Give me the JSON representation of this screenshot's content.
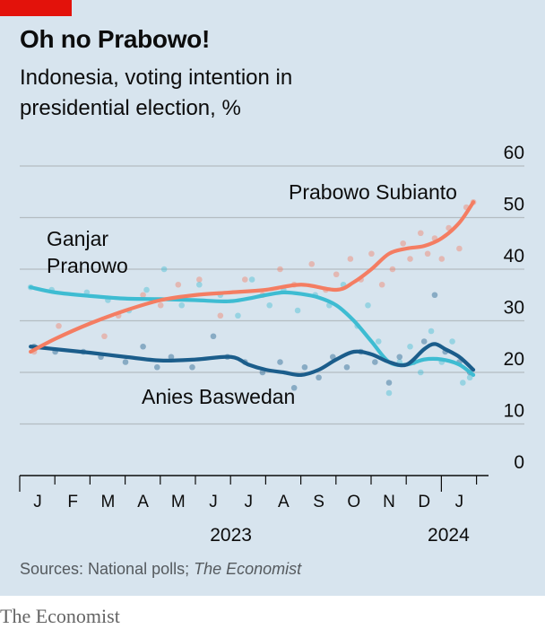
{
  "header": {
    "title": "Oh no Prabowo!",
    "subtitle": "Indonesia, voting intention in presidential election, %"
  },
  "source": {
    "prefix": "Sources: National polls; ",
    "italic": "The Economist"
  },
  "footer": {
    "brand": "The Economist"
  },
  "colors": {
    "background": "#d7e4ee",
    "grid": "#b4bcc2",
    "axis": "#0c0c0c",
    "prabowo": "#f47d62",
    "ganjar": "#3ebcd2",
    "anies": "#1b5d8b",
    "brand_red": "#e3120b"
  },
  "chart_data": {
    "type": "line",
    "x_unit": "month index (0 = Jan 2023)",
    "xlim": [
      0,
      12.7
    ],
    "ylim": [
      0,
      60
    ],
    "yticks": [
      0,
      10,
      20,
      30,
      40,
      50,
      60
    ],
    "grid": true,
    "month_labels": [
      "J",
      "F",
      "M",
      "A",
      "M",
      "J",
      "J",
      "A",
      "S",
      "O",
      "N",
      "D",
      "J"
    ],
    "year_labels": [
      {
        "text": "2023",
        "x": 5.5
      },
      {
        "text": "2024",
        "x": 12
      }
    ],
    "series": [
      {
        "name": "Prabowo Subianto",
        "color": "#f47d62",
        "x": [
          -0.2,
          0.5,
          1.5,
          2.5,
          3.5,
          4.5,
          5.5,
          6.5,
          7.5,
          8.5,
          9.0,
          9.5,
          10.0,
          10.5,
          11.0,
          11.5,
          12.0,
          12.4
        ],
        "y": [
          24,
          26.5,
          29.5,
          32,
          34,
          35,
          35.5,
          36,
          37,
          36,
          37.5,
          40,
          43,
          44,
          44.5,
          46,
          49,
          53
        ],
        "points": [
          [
            -0.1,
            24
          ],
          [
            0.6,
            29
          ],
          [
            1.9,
            27
          ],
          [
            2.3,
            31
          ],
          [
            3.0,
            35
          ],
          [
            3.5,
            33
          ],
          [
            4.0,
            37
          ],
          [
            4.6,
            38
          ],
          [
            5.2,
            31
          ],
          [
            5.9,
            38
          ],
          [
            6.4,
            35
          ],
          [
            6.9,
            40
          ],
          [
            7.3,
            37
          ],
          [
            7.8,
            41
          ],
          [
            8.2,
            36
          ],
          [
            8.5,
            39
          ],
          [
            8.9,
            42
          ],
          [
            9.2,
            38
          ],
          [
            9.5,
            43
          ],
          [
            9.8,
            37
          ],
          [
            10.1,
            40
          ],
          [
            10.4,
            45
          ],
          [
            10.6,
            42
          ],
          [
            10.9,
            47
          ],
          [
            11.1,
            43
          ],
          [
            11.3,
            46
          ],
          [
            11.5,
            42
          ],
          [
            11.7,
            48
          ],
          [
            12.0,
            44
          ],
          [
            12.2,
            52
          ],
          [
            12.4,
            53
          ]
        ]
      },
      {
        "name": "Ganjar Pranowo",
        "color": "#3ebcd2",
        "x": [
          -0.2,
          0.5,
          1.5,
          2.5,
          3.5,
          4.5,
          5.5,
          6.5,
          7.0,
          7.5,
          8.0,
          8.5,
          9.0,
          9.5,
          10.0,
          10.5,
          11.0,
          11.5,
          12.0,
          12.4
        ],
        "y": [
          36.5,
          35.5,
          34.8,
          34.3,
          34.2,
          34.0,
          33.8,
          35.0,
          35.5,
          35.2,
          34.5,
          33.0,
          30.0,
          26.0,
          22.0,
          21.5,
          22.5,
          22.5,
          21.5,
          19.5
        ],
        "points": [
          [
            -0.2,
            36.5
          ],
          [
            0.4,
            36
          ],
          [
            1.4,
            35.5
          ],
          [
            2.0,
            34
          ],
          [
            2.6,
            32
          ],
          [
            3.1,
            36
          ],
          [
            3.6,
            40
          ],
          [
            4.1,
            33
          ],
          [
            4.6,
            37
          ],
          [
            5.2,
            35
          ],
          [
            5.7,
            31
          ],
          [
            6.1,
            38
          ],
          [
            6.6,
            33
          ],
          [
            7.0,
            36
          ],
          [
            7.4,
            32
          ],
          [
            7.9,
            35
          ],
          [
            8.3,
            33
          ],
          [
            8.7,
            37
          ],
          [
            9.1,
            29
          ],
          [
            9.4,
            33
          ],
          [
            9.7,
            26
          ],
          [
            10.0,
            16
          ],
          [
            10.3,
            22
          ],
          [
            10.6,
            25
          ],
          [
            10.9,
            20
          ],
          [
            11.2,
            28
          ],
          [
            11.5,
            22
          ],
          [
            11.8,
            26
          ],
          [
            12.1,
            18
          ],
          [
            12.3,
            19
          ]
        ]
      },
      {
        "name": "Anies Baswedan",
        "color": "#1b5d8b",
        "x": [
          -0.2,
          0.5,
          1.5,
          2.5,
          3.5,
          4.5,
          5.5,
          6.0,
          6.5,
          7.0,
          7.5,
          8.0,
          8.5,
          9.0,
          9.5,
          10.0,
          10.5,
          11.0,
          11.3,
          11.6,
          12.0,
          12.4
        ],
        "y": [
          25.0,
          24.5,
          23.8,
          23.0,
          22.3,
          22.5,
          23.0,
          21.5,
          20.5,
          20.0,
          19.5,
          20.5,
          22.5,
          24.0,
          23.5,
          22.0,
          21.5,
          24.5,
          25.5,
          24.5,
          23.0,
          20.5
        ],
        "points": [
          [
            -0.1,
            25
          ],
          [
            0.5,
            24
          ],
          [
            1.3,
            24
          ],
          [
            1.8,
            23
          ],
          [
            2.5,
            22
          ],
          [
            3.0,
            25
          ],
          [
            3.4,
            21
          ],
          [
            3.8,
            23
          ],
          [
            4.4,
            21
          ],
          [
            5.0,
            27
          ],
          [
            5.4,
            23
          ],
          [
            5.9,
            22
          ],
          [
            6.4,
            20
          ],
          [
            6.9,
            22
          ],
          [
            7.3,
            17
          ],
          [
            7.6,
            21
          ],
          [
            8.0,
            19
          ],
          [
            8.4,
            23
          ],
          [
            8.8,
            21
          ],
          [
            9.2,
            24
          ],
          [
            9.6,
            22
          ],
          [
            10.0,
            18
          ],
          [
            10.3,
            23
          ],
          [
            10.7,
            22
          ],
          [
            11.0,
            26
          ],
          [
            11.3,
            35
          ],
          [
            11.6,
            24
          ],
          [
            12.0,
            22
          ],
          [
            12.3,
            20
          ]
        ]
      }
    ],
    "series_labels": [
      {
        "series": 0,
        "lines": [
          "Prabowo Subianto"
        ]
      },
      {
        "series": 1,
        "lines": [
          "Ganjar",
          "Pranowo"
        ]
      },
      {
        "series": 2,
        "lines": [
          "Anies Baswedan"
        ]
      }
    ]
  }
}
